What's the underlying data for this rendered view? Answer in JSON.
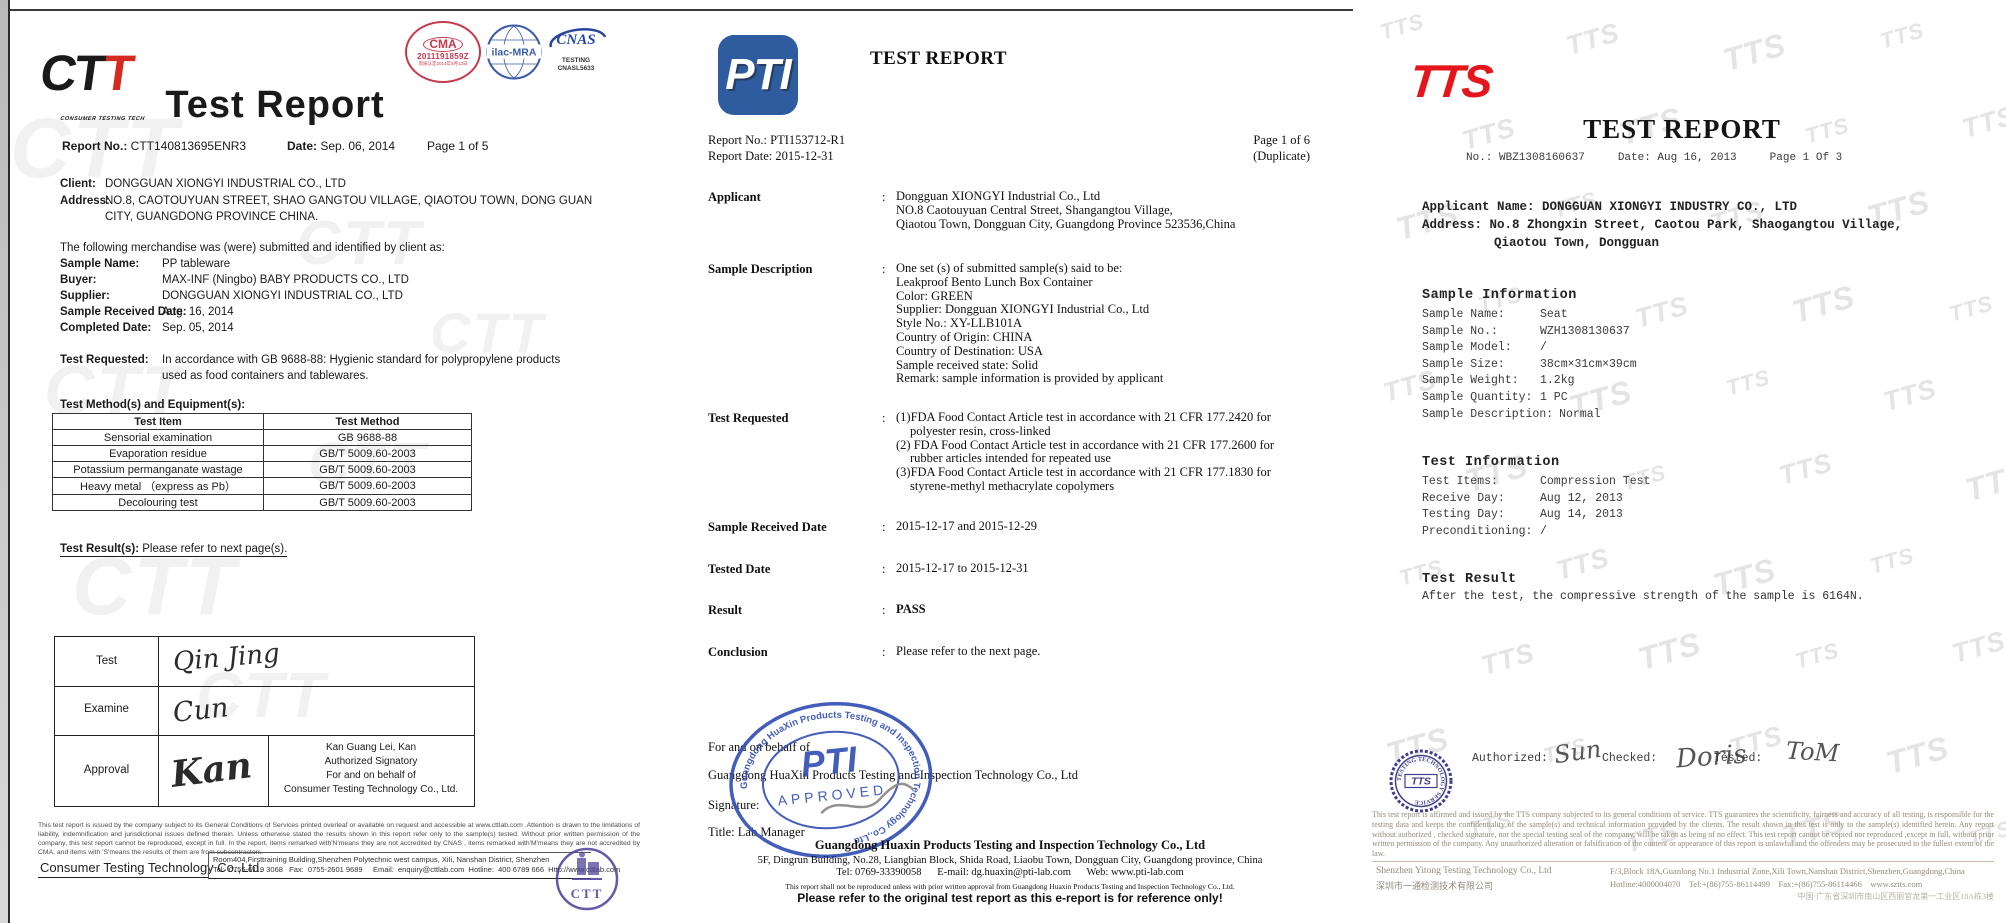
{
  "colors": {
    "ctt_red": "#d42a20",
    "cma_red": "#c5394a",
    "ilac_blue": "#3a5ba8",
    "cnas_blue": "#27479e",
    "pti_logo_blue": "#2e5c9e",
    "pti_stamp_blue": "#3350b5",
    "tts_red": "#e4161c",
    "tts_stamp_navy": "#2b2b80",
    "ctt_stamp_purple": "#4a3e96"
  },
  "left_doc": {
    "watermark": "CTT",
    "logo": {
      "part1": "CT",
      "part2": "T",
      "caption": "CONSUMER TESTING TECH"
    },
    "stamps": {
      "cma_logo": "CMA",
      "cma_number": "2011191859Z",
      "cma_tiny": "资质认定2014年8月13日",
      "ilac": "ilac-MRA",
      "cnas": "CNAS",
      "cnas_sub1": "TESTING",
      "cnas_sub2": "CNASL5633"
    },
    "title": "Test Report",
    "report_no_label": "Report No.:",
    "report_no": "CTT140813695ENR3",
    "date_label": "Date:",
    "date": "Sep. 06, 2014",
    "page": "Page 1 of 5",
    "client_label": "Client:",
    "client": "DONGGUAN XIONGYI INDUSTRIAL CO., LTD",
    "address_label": "Address:",
    "address_line1": "NO.8, CAOTOUYUAN STREET, SHAO GANGTOU VILLAGE, QIAOTOU TOWN, DONG GUAN",
    "address_line2": "CITY, GUANGDONG PROVINCE CHINA.",
    "merchandise_intro": "The following merchandise was (were) submitted and identified by client as:",
    "fields": [
      {
        "label": "Sample Name:",
        "value": "PP tableware"
      },
      {
        "label": "Buyer:",
        "value": "MAX-INF (Ningbo) BABY PRODUCTS CO., LTD"
      },
      {
        "label": "Supplier:",
        "value": "DONGGUAN XIONGYI INDUSTRIAL CO., LTD"
      },
      {
        "label": "Sample Received Date:",
        "value": "Aug. 16, 2014"
      },
      {
        "label": "Completed Date:",
        "value": "Sep. 05, 2014"
      }
    ],
    "test_requested_label": "Test Requested:",
    "test_requested_line1": "In accordance with GB 9688-88: Hygienic standard for polypropylene products",
    "test_requested_line2": "used as food containers and tablewares.",
    "methods_title": "Test Method(s) and Equipment(s):",
    "methods_table": {
      "headers": {
        "item": "Test Item",
        "method": "Test Method"
      },
      "rows": [
        {
          "item": "Sensorial examination",
          "method": "GB 9688-88"
        },
        {
          "item": "Evaporation residue",
          "method": "GB/T 5009.60-2003"
        },
        {
          "item": "Potassium permanganate wastage",
          "method": "GB/T 5009.60-2003"
        },
        {
          "item": "Heavy metal （express as Pb）",
          "method": "GB/T 5009.60-2003"
        },
        {
          "item": "Decolouring test",
          "method": "GB/T 5009.60-2003"
        }
      ]
    },
    "result_label": "Test Result(s):",
    "result_text": " Please refer to next page(s).",
    "sign_table": {
      "test_label": "Test",
      "test_sig": "Qin Jing",
      "examine_label": "Examine",
      "examine_sig": "Cun",
      "approval_label": "Approval",
      "approval_sig": "Kan",
      "approval_line1": "Kan Guang Lei, Kan",
      "approval_line2": "Authorized Signatory",
      "approval_line3": "For and on behalf of",
      "approval_line4": "Consumer Testing Technology Co., Ltd."
    },
    "footer": {
      "disclaimer": "This test report is issued by the company subject to its General Conditions of Services printed overleaf or available on request and accessible at www.cttlab.com .Attention is drawn to the limitations of liability, indemnification and jurisdictional issues defined therein. Unless otherwise stated the results shown in this report refer only to the sample(s) tested. Without prior written permission of the company, this test report cannot be reproduced, except in full. In the report, items remarked with'N'means they are not accredited by CNAS , items remarked with'M'means they are not accredited by CMA, and items with 'S'means the results of them are from subcontractors.",
      "company": "Consumer Testing Technology Co.,Ltd.",
      "addr1": "Room404,Firsttraining Building,Shenzhen Polytechnic west campus, XiIi, Nanshan District, Shenzhen",
      "addr2": "Tel:  0755-6119 3068   Fax:  0755-2601 9689     Email:  enquiry@cttlab.com  Hotline:  400 6789 666  Http://www.cttlab.com",
      "stamp_text": "CTT"
    }
  },
  "middle_doc": {
    "logo": "PTI",
    "title": "TEST REPORT",
    "report_no": "Report No.: PTI153712-R1",
    "report_date": "Report Date: 2015-12-31",
    "page": "Page 1 of 6",
    "duplicate": "(Duplicate)",
    "colon": ":",
    "fields": [
      {
        "label": "Applicant",
        "lines": [
          "Dongguan XIONGYI Industrial Co., Ltd",
          "NO.8 Caotouyuan Central Street, Shangangtou Village,",
          "Qiaotou Town, Dongguan City, Guangdong Province 523536,China"
        ]
      },
      {
        "label": "Sample Description",
        "lines": [
          "One set (s) of submitted sample(s) said to be:",
          "Leakproof Bento Lunch Box Container",
          "Color: GREEN",
          "Supplier: Dongguan XIONGYI Industrial Co., Ltd",
          "Style No.: XY-LLB101A",
          "Country of Origin: CHINA",
          "Country of Destination: USA",
          "Sample received state: Solid",
          "Remark: sample information is provided by applicant"
        ]
      },
      {
        "label": "Test Requested",
        "lines": [
          "(1)FDA Food Contact Article test in accordance with 21 CFR 177.2420 for",
          "polyester resin, cross-linked",
          "(2) FDA Food Contact Article test in accordance with 21 CFR 177.2600 for",
          "rubber articles intended for repeated use",
          "(3)FDA Food Contact Article test in accordance with 21 CFR 177.1830 for",
          "styrene-methyl methacrylate copolymers"
        ]
      },
      {
        "label": "Sample Received Date",
        "lines": [
          "2015-12-17 and 2015-12-29"
        ]
      },
      {
        "label": "Tested Date",
        "lines": [
          "2015-12-17 to 2015-12-31"
        ]
      },
      {
        "label": "Result",
        "lines": [
          "PASS"
        ]
      },
      {
        "label": "Conclusion",
        "lines": [
          "Please refer to the next page."
        ]
      }
    ],
    "behalf_line1": "For and on behalf of",
    "behalf_line2": "Guangdong HuaXin Products Testing and Inspection Technology Co., Ltd",
    "signature_label": "Signature:",
    "title_label": "Title: Lab Manager",
    "stamp": {
      "center": "PTI",
      "approved": "APPROVED",
      "ring": "Guangdong HuaXin Products Testing and Inspection Technology Co.,Ltd"
    },
    "footer": {
      "company": "Guangdong Huaxin Products Testing and Inspection Technology Co., Ltd",
      "address": "5F, Dingrun Building, No.28, Liangbian Block, Shida Road, Liaobu Town, Dongguan City, Guangdong province, China",
      "contact": "Tel: 0769-33390058      E-mail: dg.huaxin@pti-lab.com      Web: www.pti-lab.com",
      "notice": "This report shall not be reproduced unless with prior written approval from Guangdong Huaxin Products Testing and Inspection Technology Co., Ltd.",
      "refer": "Please refer to the original test report as this e-report is for reference only!"
    }
  },
  "right_doc": {
    "watermark": "TTS",
    "logo": "TTS",
    "title": "TEST REPORT",
    "meta": "No.: WBZ1308160637     Date: Aug 16, 2013     Page 1 Of 3",
    "applicant_line1": "Applicant Name: DONGGUAN XIONGYI INDUSTRY CO., LTD",
    "applicant_line2": "Address: No.8 Zhongxin Street, Caotou Park, Shaogangtou Village,",
    "applicant_line3": "Qiaotou Town, Dongguan",
    "sample_info_title": "Sample Information",
    "sample_rows": [
      {
        "label": "Sample Name:",
        "value": "Seat"
      },
      {
        "label": "Sample No.:",
        "value": "WZH1308130637"
      },
      {
        "label": "Sample Model:",
        "value": "/"
      },
      {
        "label": "Sample Size:",
        "value": "38cm×31cm×39cm"
      },
      {
        "label": "Sample Weight:",
        "value": "1.2kg"
      },
      {
        "label": "Sample Quantity:",
        "value": "1 PC"
      },
      {
        "label": "Sample Description:",
        "value": "Normal"
      }
    ],
    "test_info_title": "Test Information",
    "test_rows": [
      {
        "label": "Test Items:",
        "value": "Compression Test"
      },
      {
        "label": "Receive Day:",
        "value": "Aug 12, 2013"
      },
      {
        "label": "Testing Day:",
        "value": "Aug 14, 2013"
      },
      {
        "label": "Preconditioning:",
        "value": "/"
      }
    ],
    "result_title": "Test Result",
    "result_text": "After the test, the compressive strength of the sample is 6164N.",
    "authorized_label": "Authorized:",
    "authorized_sig": "Sun",
    "checked_label": "Checked:",
    "checked_sig": "Doris",
    "tested_label": "Tested:",
    "tested_sig": "ToM",
    "stamp": {
      "center": "TTS",
      "ring": "TESTING TECHNOLOGY SERVICE"
    },
    "footer": {
      "disclaimer": "This test report is affirmed and issued by the TTS company subjected to its general conditions of service. TTS guarantees the scientificity, fairness and accuracy of all testing, is responsible for the testing data and keeps the confidentiality of the sample(s) and technical information provided by the clients. The result shown in this test is only to the sample(s) identified herein. Any report without authorized , checked signature, nor the special testing seal of the company, will be taken as being of no effect. This test report cannot be copied nor reproduced ,except in full, without prior written permission of the company. Any unauthorized alteration or falsification of the content or appearance of this report is unlawful and the offenders may be prosecuted to the fullest extent of the law.",
      "company_en": "Shenzhen Yitong Testing Technology Co., Ltd",
      "company_cn": "深圳市一通检测技术有限公司",
      "address": "F/3,Block 18A,Guanlong No.1 Industrial Zone,Xili Town,Nanshan District,Shenzhen,Guangdong,China",
      "contact": "Hotline:4000004070    Tel:+(86)755-86114499    Fax:+(86)755-86114466    www.sztts.com",
      "address_cn": "中国·广东省深圳市南山区西丽官龙第一工业区18A栋3楼"
    }
  }
}
